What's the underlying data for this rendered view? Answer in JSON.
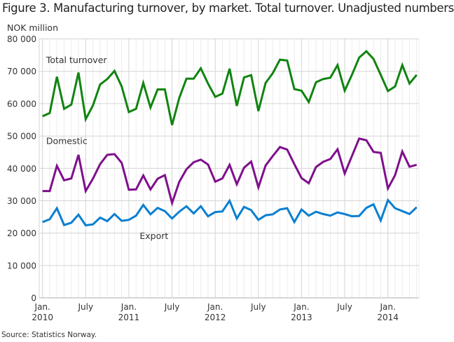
{
  "chart_data": {
    "type": "line",
    "title": "Figure 3. Manufacturing turnover, by market. Total turnover. Unadjusted numbers",
    "ylabel": "NOK million",
    "xlabel": "",
    "source": "Source: Statistics Norway.",
    "ylim": [
      0,
      80000
    ],
    "yticks": [
      0,
      10000,
      20000,
      30000,
      40000,
      50000,
      60000,
      70000,
      80000
    ],
    "ytick_labels": [
      "0",
      "10 000",
      "20 000",
      "30 000",
      "40 000",
      "50 000",
      "60 000",
      "70 000",
      "80 000"
    ],
    "grid": true,
    "legend": "inline labels",
    "x_start": "2010-01",
    "x_end": "2014-05",
    "xtick_labels": [
      {
        "index": 0,
        "line1": "Jan.",
        "line2": "2010"
      },
      {
        "index": 6,
        "line1": "July",
        "line2": ""
      },
      {
        "index": 12,
        "line1": "Jan.",
        "line2": "2011"
      },
      {
        "index": 18,
        "line1": "July",
        "line2": ""
      },
      {
        "index": 24,
        "line1": "Jan.",
        "line2": "2012"
      },
      {
        "index": 30,
        "line1": "July",
        "line2": ""
      },
      {
        "index": 36,
        "line1": "Jan.",
        "line2": "2013"
      },
      {
        "index": 42,
        "line1": "July",
        "line2": ""
      },
      {
        "index": 48,
        "line1": "Jan.",
        "line2": "2014"
      }
    ],
    "series": [
      {
        "name": "Total turnover",
        "color": "#108410",
        "label_anchor": {
          "index": 0.5,
          "value": 72500
        },
        "values": [
          56100,
          57100,
          68300,
          58400,
          59700,
          69600,
          55200,
          59400,
          65900,
          67600,
          70100,
          65300,
          57400,
          58400,
          66400,
          58800,
          64400,
          64400,
          53400,
          61700,
          67700,
          67700,
          70900,
          66200,
          62100,
          63100,
          70800,
          59300,
          68100,
          68800,
          57700,
          66400,
          69400,
          73600,
          73300,
          64500,
          64000,
          60500,
          66600,
          67600,
          68000,
          71900,
          64000,
          68900,
          74200,
          76200,
          73800,
          68900,
          63900,
          65300,
          71900,
          66200,
          68900
        ]
      },
      {
        "name": "Domestic",
        "color": "#7f0f8c",
        "label_anchor": {
          "index": 0.5,
          "value": 47500
        },
        "values": [
          33000,
          33000,
          40800,
          36300,
          36900,
          44200,
          33000,
          36800,
          41300,
          44200,
          44400,
          41700,
          33400,
          33500,
          37800,
          33500,
          36800,
          37900,
          29300,
          35800,
          39700,
          41900,
          42700,
          41200,
          35900,
          36900,
          41100,
          35100,
          40200,
          42100,
          34100,
          40900,
          43800,
          46600,
          45800,
          41300,
          37000,
          35400,
          40400,
          42000,
          42900,
          45900,
          38400,
          43800,
          49200,
          48700,
          45100,
          44800,
          33800,
          37900,
          45200,
          40500,
          41100
        ]
      },
      {
        "name": "Export",
        "color": "#0a7fd1",
        "label_anchor": {
          "index": 13.5,
          "value": 18200
        },
        "values": [
          23400,
          24300,
          27700,
          22500,
          23200,
          25700,
          22400,
          22700,
          24800,
          23700,
          25900,
          23800,
          24100,
          25400,
          28700,
          25800,
          27800,
          26800,
          24500,
          26600,
          28300,
          26100,
          28300,
          25200,
          26500,
          26700,
          30000,
          24500,
          28100,
          27100,
          24100,
          25500,
          25800,
          27300,
          27700,
          23400,
          27300,
          25400,
          26600,
          25900,
          25400,
          26400,
          25900,
          25200,
          25300,
          27800,
          28900,
          23900,
          30200,
          27700,
          26800,
          25900,
          28000
        ]
      }
    ]
  }
}
